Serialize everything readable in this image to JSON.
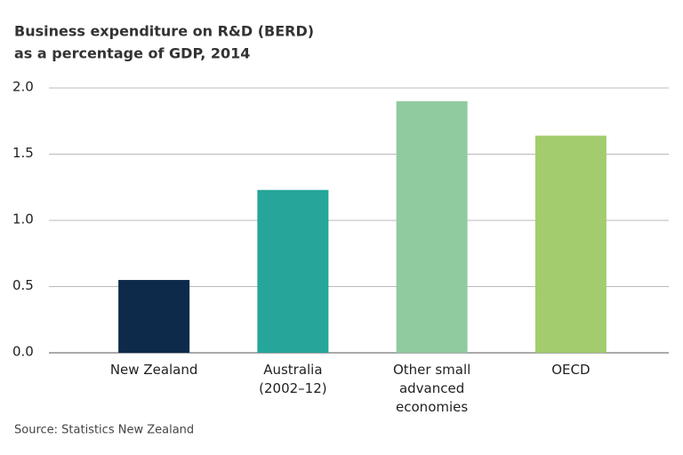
{
  "chart_data": {
    "type": "bar",
    "title": "Business expenditure on R&D (BERD)",
    "subtitle": "as a percentage of GDP, 2014",
    "categories": [
      "New Zealand",
      "Australia (2002–12)",
      "Other small advanced economies",
      "OECD"
    ],
    "values": [
      0.55,
      1.23,
      1.9,
      1.64
    ],
    "colors": [
      "#0d2a4a",
      "#26a69a",
      "#8fcb9f",
      "#a3cc6e"
    ],
    "ylim": [
      0,
      2
    ],
    "yticks": [
      {
        "value": 0,
        "label": "0.0"
      },
      0.5,
      {
        "value": 1,
        "label": "1.0"
      },
      1.5,
      {
        "value": 2,
        "label": "2.0"
      }
    ],
    "grid": true,
    "source": "Source: Statistics New Zealand"
  }
}
